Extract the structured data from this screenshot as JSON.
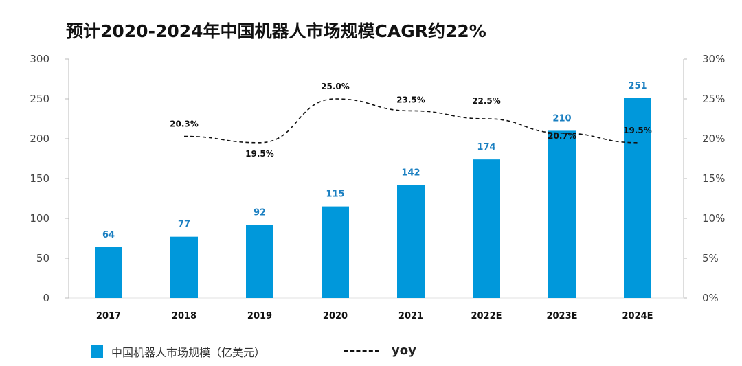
{
  "title": "预计2020-2024年中国机器人市场规模CAGR约22%",
  "colors": {
    "bar": "#0098db",
    "bar_label": "#1a7fc1",
    "line": "#111111",
    "axis_text": "#444444"
  },
  "chart_data": {
    "type": "bar",
    "categories": [
      "2017",
      "2018",
      "2019",
      "2020",
      "2021",
      "2022E",
      "2023E",
      "2024E"
    ],
    "series": [
      {
        "name": "中国机器人市场规模（亿美元）",
        "type": "bar",
        "axis": "left",
        "values": [
          64,
          77,
          92,
          115,
          142,
          174,
          210,
          251
        ]
      },
      {
        "name": "yoy",
        "type": "line",
        "axis": "right",
        "style": "dashed",
        "values": [
          null,
          20.3,
          19.5,
          25.0,
          23.5,
          22.5,
          20.7,
          19.5
        ],
        "labels": [
          null,
          "20.3%",
          "19.5%",
          "25.0%",
          "23.5%",
          "22.5%",
          "20.7%",
          "19.5%"
        ]
      }
    ],
    "left_axis": {
      "ylim": [
        0,
        300
      ],
      "ticks": [
        0,
        50,
        100,
        150,
        200,
        250,
        300
      ]
    },
    "right_axis": {
      "ylim": [
        0,
        30
      ],
      "ticks": [
        "0%",
        "5%",
        "10%",
        "15%",
        "20%",
        "25%",
        "30%"
      ]
    },
    "grid": false,
    "legend_position": "bottom-left"
  },
  "legend": {
    "bar_label": "中国机器人市场规模（亿美元）",
    "line_label": "yoy"
  }
}
